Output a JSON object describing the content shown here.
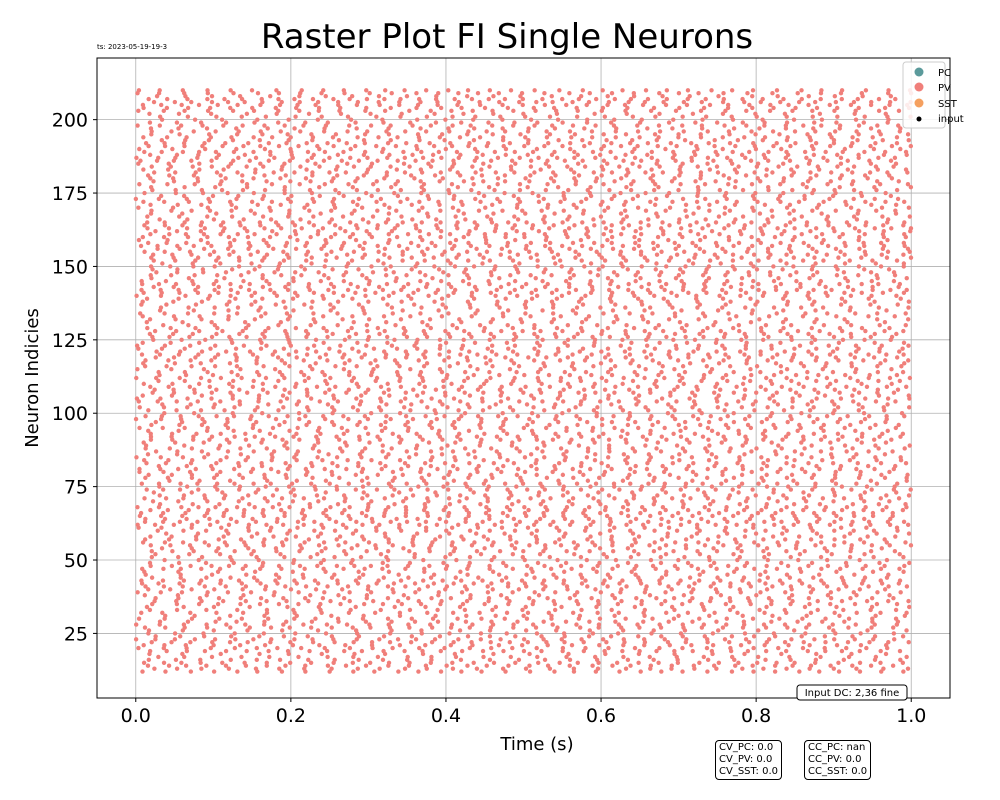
{
  "timestamp": "ts: 2023-05-19-19-3",
  "input_label": "Input DC: 2,36 fine",
  "stats": {
    "cv": [
      "CV_PC: 0.0",
      "CV_PV: 0.0",
      "CV_SST: 0.0"
    ],
    "cc": [
      "CC_PC: nan",
      "CC_PV: 0.0",
      "CC_SST: 0.0"
    ]
  },
  "chart_data": {
    "type": "scatter",
    "title": "Raster Plot FI Single Neurons",
    "xlabel": "Time (s)",
    "ylabel": "Neuron Indicies",
    "xlim": [
      -0.05,
      1.05
    ],
    "ylim": [
      3,
      221
    ],
    "x_ticks": [
      0.0,
      0.2,
      0.4,
      0.6,
      0.8,
      1.0
    ],
    "x_tick_labels": [
      "0.0",
      "0.2",
      "0.4",
      "0.6",
      "0.8",
      "1.0"
    ],
    "y_ticks": [
      25,
      50,
      75,
      100,
      125,
      150,
      175,
      200
    ],
    "y_tick_labels": [
      "25",
      "50",
      "75",
      "100",
      "125",
      "150",
      "175",
      "200"
    ],
    "grid": true,
    "legend_position": "top-right",
    "legend": [
      {
        "name": "PC",
        "color": "#5b9a9b"
      },
      {
        "name": "PV",
        "color": "#f07f7a"
      },
      {
        "name": "SST",
        "color": "#f5a05f"
      },
      {
        "name": "input",
        "color": "#000000"
      }
    ],
    "series": [
      {
        "name": "PV",
        "color": "#f07f7a",
        "neuron_range": [
          12,
          210
        ],
        "time_range": [
          0.0,
          1.0
        ],
        "description": "dense spiking across all neuron indices 12-210 over the full 0-1 s window"
      }
    ]
  }
}
